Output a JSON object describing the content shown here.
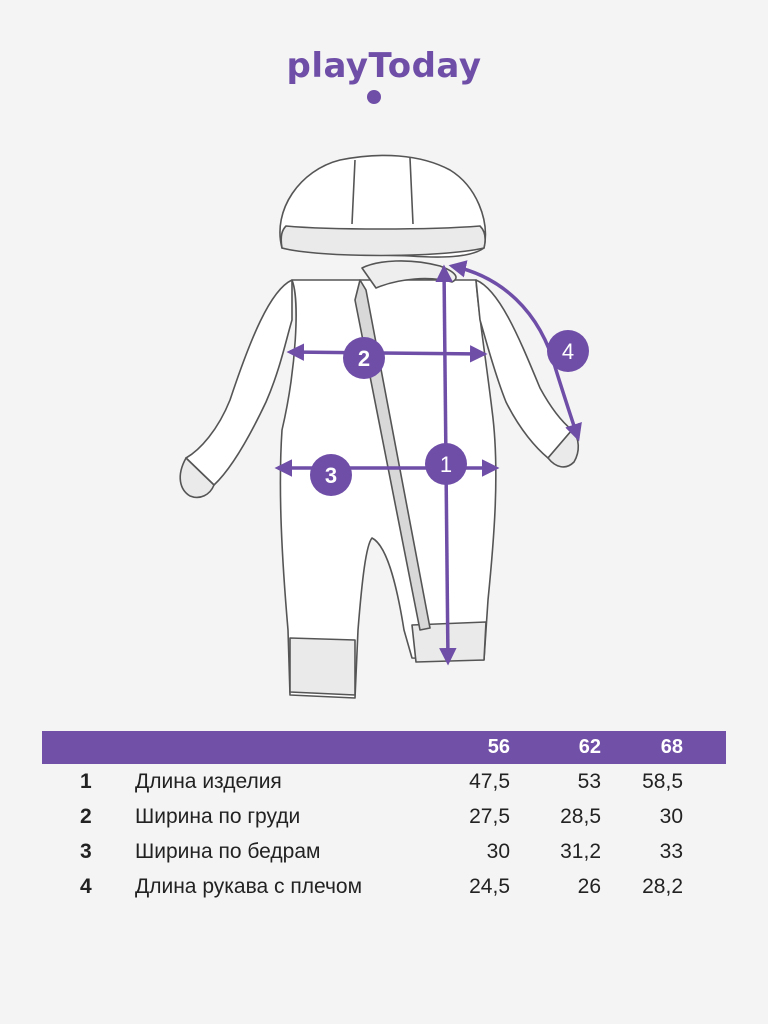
{
  "brand": {
    "logo_text": "playToday",
    "color": "#6f4ea8"
  },
  "diagram": {
    "markers": [
      "1",
      "2",
      "3",
      "4"
    ],
    "accent_color": "#6f4ea8",
    "item_icon": "hooded-jumpsuit-icon"
  },
  "table": {
    "header_color": "#7150a7",
    "sizes": [
      "56",
      "62",
      "68"
    ],
    "rows": [
      {
        "num": "1",
        "name": "Длина изделия",
        "values": [
          "47,5",
          "53",
          "58,5"
        ]
      },
      {
        "num": "2",
        "name": "Ширина по груди",
        "values": [
          "27,5",
          "28,5",
          "30"
        ]
      },
      {
        "num": "3",
        "name": "Ширина по бедрам",
        "values": [
          "30",
          "31,2",
          "33"
        ]
      },
      {
        "num": "4",
        "name": "Длина рукава с плечом",
        "values": [
          "24,5",
          "26",
          "28,2"
        ]
      }
    ]
  }
}
